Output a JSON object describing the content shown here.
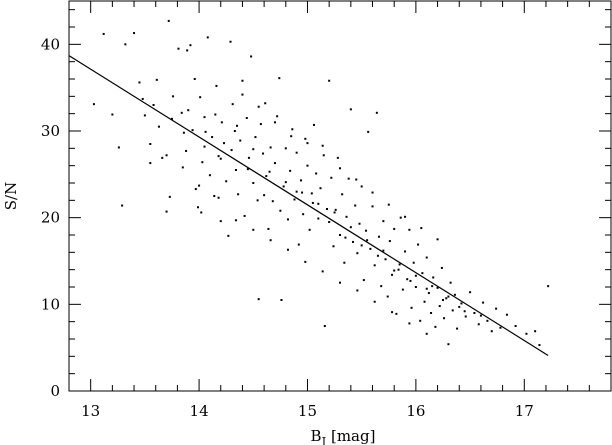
{
  "chart_data": {
    "type": "scatter",
    "xlabel": "B",
    "xlabel_sub": "J",
    "xlabel_unit": "[mag]",
    "ylabel": "S/N",
    "xlim": [
      12.8,
      17.8
    ],
    "ylim": [
      0,
      45
    ],
    "x_ticks": [
      "13",
      "14",
      "15",
      "16",
      "17"
    ],
    "y_ticks": [
      "0",
      "10",
      "20",
      "30",
      "40"
    ],
    "grid": false,
    "fit_line": {
      "x": [
        12.8,
        17.22
      ],
      "y": [
        38.7,
        4.1
      ]
    },
    "point_color": "#000000",
    "line_color": "#000000",
    "points": [
      [
        13.03,
        33.1
      ],
      [
        13.12,
        41.2
      ],
      [
        13.2,
        31.9
      ],
      [
        13.26,
        28.1
      ],
      [
        13.29,
        21.4
      ],
      [
        13.32,
        40.0
      ],
      [
        13.4,
        41.3
      ],
      [
        13.45,
        35.6
      ],
      [
        13.48,
        33.7
      ],
      [
        13.5,
        31.8
      ],
      [
        13.55,
        26.3
      ],
      [
        13.58,
        33.0
      ],
      [
        13.61,
        35.9
      ],
      [
        13.63,
        30.5
      ],
      [
        13.66,
        26.9
      ],
      [
        13.7,
        20.7
      ],
      [
        13.72,
        42.7
      ],
      [
        13.73,
        22.4
      ],
      [
        13.75,
        31.4
      ],
      [
        13.76,
        34.0
      ],
      [
        13.81,
        39.5
      ],
      [
        13.84,
        32.1
      ],
      [
        13.86,
        29.8
      ],
      [
        13.88,
        27.7
      ],
      [
        13.89,
        39.3
      ],
      [
        13.92,
        39.9
      ],
      [
        13.94,
        30.1
      ],
      [
        13.96,
        36.0
      ],
      [
        13.97,
        23.3
      ],
      [
        13.99,
        21.2
      ],
      [
        14.01,
        33.9
      ],
      [
        14.03,
        26.4
      ],
      [
        14.05,
        31.6
      ],
      [
        14.06,
        29.9
      ],
      [
        14.08,
        40.8
      ],
      [
        14.1,
        24.9
      ],
      [
        14.12,
        29.3
      ],
      [
        14.14,
        22.5
      ],
      [
        14.16,
        35.2
      ],
      [
        14.18,
        27.1
      ],
      [
        14.2,
        19.6
      ],
      [
        14.21,
        31.0
      ],
      [
        14.23,
        28.6
      ],
      [
        14.25,
        24.2
      ],
      [
        14.27,
        17.9
      ],
      [
        14.29,
        40.3
      ],
      [
        14.31,
        33.1
      ],
      [
        14.33,
        30.0
      ],
      [
        14.34,
        25.5
      ],
      [
        14.36,
        22.7
      ],
      [
        14.38,
        28.9
      ],
      [
        14.4,
        35.8
      ],
      [
        14.42,
        20.2
      ],
      [
        14.44,
        31.5
      ],
      [
        14.46,
        26.9
      ],
      [
        14.48,
        38.6
      ],
      [
        14.5,
        24.0
      ],
      [
        14.52,
        29.3
      ],
      [
        14.54,
        22.0
      ],
      [
        14.55,
        10.6
      ],
      [
        14.57,
        30.8
      ],
      [
        14.59,
        27.4
      ],
      [
        14.61,
        33.2
      ],
      [
        14.62,
        24.8
      ],
      [
        14.64,
        18.7
      ],
      [
        14.66,
        28.1
      ],
      [
        14.68,
        21.9
      ],
      [
        14.7,
        26.3
      ],
      [
        14.72,
        31.7
      ],
      [
        14.74,
        36.1
      ],
      [
        14.76,
        10.5
      ],
      [
        14.78,
        23.6
      ],
      [
        14.8,
        28.0
      ],
      [
        14.82,
        19.8
      ],
      [
        14.84,
        25.4
      ],
      [
        14.86,
        30.2
      ],
      [
        14.88,
        22.1
      ],
      [
        14.9,
        27.5
      ],
      [
        14.92,
        16.9
      ],
      [
        14.94,
        24.3
      ],
      [
        14.96,
        20.4
      ],
      [
        14.98,
        29.1
      ],
      [
        15.0,
        26.0
      ],
      [
        15.02,
        18.6
      ],
      [
        15.04,
        22.8
      ],
      [
        15.06,
        30.7
      ],
      [
        15.08,
        25.1
      ],
      [
        15.1,
        19.9
      ],
      [
        15.12,
        23.4
      ],
      [
        15.14,
        28.3
      ],
      [
        15.16,
        7.5
      ],
      [
        15.18,
        21.0
      ],
      [
        15.2,
        35.8
      ],
      [
        15.22,
        24.6
      ],
      [
        15.24,
        16.7
      ],
      [
        15.26,
        20.9
      ],
      [
        15.28,
        26.9
      ],
      [
        15.3,
        18.0
      ],
      [
        15.32,
        22.7
      ],
      [
        15.34,
        14.8
      ],
      [
        15.36,
        20.1
      ],
      [
        15.38,
        24.5
      ],
      [
        15.4,
        32.5
      ],
      [
        15.42,
        17.2
      ],
      [
        15.44,
        21.4
      ],
      [
        15.46,
        15.9
      ],
      [
        15.48,
        19.3
      ],
      [
        15.5,
        23.6
      ],
      [
        15.52,
        12.8
      ],
      [
        15.54,
        18.5
      ],
      [
        15.56,
        29.9
      ],
      [
        15.58,
        16.4
      ],
      [
        15.6,
        21.3
      ],
      [
        15.62,
        14.5
      ],
      [
        15.64,
        32.1
      ],
      [
        15.66,
        17.8
      ],
      [
        15.68,
        12.1
      ],
      [
        15.7,
        19.6
      ],
      [
        15.72,
        15.2
      ],
      [
        15.74,
        10.9
      ],
      [
        15.76,
        17.3
      ],
      [
        15.78,
        13.4
      ],
      [
        15.8,
        18.7
      ],
      [
        15.82,
        8.9
      ],
      [
        15.84,
        14.0
      ],
      [
        15.86,
        20.0
      ],
      [
        15.88,
        11.7
      ],
      [
        15.9,
        16.1
      ],
      [
        15.92,
        12.9
      ],
      [
        15.94,
        18.6
      ],
      [
        15.96,
        9.6
      ],
      [
        15.98,
        14.8
      ],
      [
        16.0,
        12.0
      ],
      [
        16.02,
        16.9
      ],
      [
        16.04,
        8.1
      ],
      [
        16.06,
        13.6
      ],
      [
        16.08,
        10.3
      ],
      [
        16.1,
        15.4
      ],
      [
        16.12,
        11.3
      ],
      [
        16.14,
        9.0
      ],
      [
        16.16,
        13.1
      ],
      [
        16.18,
        7.4
      ],
      [
        16.2,
        11.9
      ],
      [
        16.22,
        9.8
      ],
      [
        16.24,
        14.2
      ],
      [
        16.26,
        8.4
      ],
      [
        16.28,
        10.7
      ],
      [
        16.3,
        5.4
      ],
      [
        16.32,
        12.5
      ],
      [
        16.34,
        9.3
      ],
      [
        16.36,
        11.1
      ],
      [
        16.38,
        7.2
      ],
      [
        16.42,
        10.1
      ],
      [
        16.46,
        8.6
      ],
      [
        16.5,
        11.4
      ],
      [
        16.54,
        9.0
      ],
      [
        16.58,
        7.7
      ],
      [
        16.62,
        10.2
      ],
      [
        16.66,
        8.1
      ],
      [
        16.7,
        6.9
      ],
      [
        16.74,
        9.5
      ],
      [
        16.78,
        7.3
      ],
      [
        16.84,
        8.8
      ],
      [
        16.92,
        7.5
      ],
      [
        17.02,
        6.6
      ],
      [
        17.1,
        6.9
      ],
      [
        17.14,
        5.3
      ],
      [
        17.22,
        12.1
      ],
      [
        13.55,
        28.5
      ],
      [
        13.7,
        27.2
      ],
      [
        13.85,
        25.8
      ],
      [
        14.0,
        23.7
      ],
      [
        14.15,
        31.9
      ],
      [
        14.3,
        27.8
      ],
      [
        14.45,
        25.6
      ],
      [
        14.6,
        22.6
      ],
      [
        14.75,
        20.8
      ],
      [
        14.9,
        23.0
      ],
      [
        15.05,
        21.7
      ],
      [
        15.2,
        19.5
      ],
      [
        15.35,
        17.7
      ],
      [
        15.5,
        16.8
      ],
      [
        15.65,
        15.6
      ],
      [
        15.8,
        13.9
      ],
      [
        15.95,
        12.7
      ],
      [
        16.1,
        11.8
      ],
      [
        16.25,
        10.5
      ],
      [
        16.4,
        9.7
      ],
      [
        13.9,
        32.4
      ],
      [
        14.05,
        28.2
      ],
      [
        14.2,
        26.8
      ],
      [
        14.35,
        30.6
      ],
      [
        14.5,
        27.9
      ],
      [
        14.65,
        25.3
      ],
      [
        14.8,
        24.1
      ],
      [
        14.95,
        22.9
      ],
      [
        15.1,
        21.6
      ],
      [
        15.25,
        20.6
      ],
      [
        15.4,
        18.9
      ],
      [
        15.55,
        17.4
      ],
      [
        15.7,
        16.2
      ],
      [
        15.85,
        14.6
      ],
      [
        16.0,
        13.3
      ],
      [
        16.15,
        12.1
      ],
      [
        16.3,
        10.9
      ],
      [
        16.45,
        9.2
      ],
      [
        16.6,
        8.7
      ],
      [
        14.02,
        20.6
      ],
      [
        14.18,
        22.3
      ],
      [
        14.34,
        19.7
      ],
      [
        14.5,
        18.6
      ],
      [
        14.66,
        17.4
      ],
      [
        14.82,
        16.3
      ],
      [
        14.98,
        14.9
      ],
      [
        15.14,
        13.8
      ],
      [
        15.3,
        12.5
      ],
      [
        15.46,
        11.6
      ],
      [
        15.62,
        10.3
      ],
      [
        15.78,
        9.1
      ],
      [
        15.94,
        7.8
      ],
      [
        16.1,
        6.6
      ],
      [
        14.4,
        34.2
      ],
      [
        14.55,
        32.8
      ],
      [
        14.7,
        31.0
      ],
      [
        14.85,
        29.4
      ],
      [
        15.0,
        28.6
      ],
      [
        15.15,
        27.2
      ],
      [
        15.3,
        25.7
      ],
      [
        15.45,
        24.4
      ],
      [
        15.6,
        22.9
      ],
      [
        15.75,
        21.5
      ],
      [
        15.9,
        20.1
      ],
      [
        16.05,
        18.8
      ],
      [
        16.2,
        17.5
      ]
    ]
  }
}
